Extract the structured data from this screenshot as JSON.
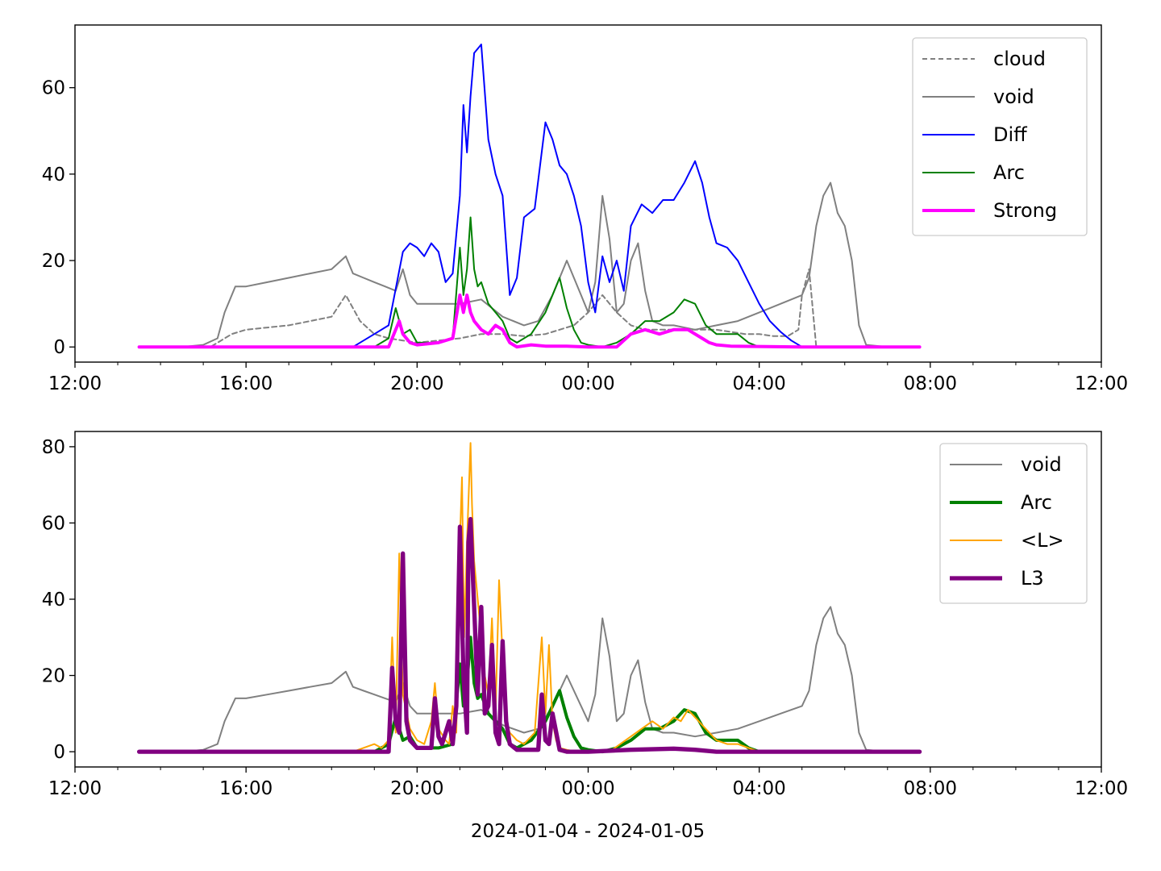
{
  "figure": {
    "xlabel": "2024-01-04 - 2024-01-05"
  },
  "chart_data": [
    {
      "type": "line",
      "title": "",
      "xlabel": "",
      "ylabel": "",
      "xlim": [
        "2024-01-04 12:00",
        "2024-01-05 12:00"
      ],
      "ylim": [
        -3.5,
        74.5
      ],
      "x_ticks": [
        "12:00",
        "16:00",
        "20:00",
        "00:00",
        "04:00",
        "08:00",
        "12:00"
      ],
      "y_ticks": [
        "0",
        "20",
        "40",
        "60"
      ],
      "grid": false,
      "legend_position": "upper right",
      "series": [
        {
          "name": "cloud",
          "color": "#808080",
          "style": "dashed",
          "width": 1.5,
          "x": [
            "13:30",
            "14:30",
            "15:10",
            "15:20",
            "15:40",
            "16:00",
            "16:30",
            "17:00",
            "17:30",
            "18:00",
            "18:20",
            "18:40",
            "19:00",
            "19:20",
            "19:40",
            "20:00",
            "20:30",
            "21:00",
            "21:30",
            "22:00",
            "22:30",
            "23:00",
            "23:20",
            "23:40",
            "00:00",
            "00:20",
            "00:40",
            "01:00",
            "01:20",
            "01:40",
            "02:00",
            "02:20",
            "02:40",
            "03:00",
            "03:20",
            "03:40",
            "04:00",
            "04:20",
            "04:40",
            "04:55",
            "05:00",
            "05:10",
            "05:20",
            "05:30",
            "06:00",
            "06:30",
            "07:00",
            "07:45"
          ],
          "y": [
            0,
            0,
            0,
            1,
            3,
            4,
            4.5,
            5,
            6,
            7,
            12,
            6,
            3,
            2,
            1.5,
            1,
            1.5,
            2,
            3,
            3,
            2.5,
            3,
            4,
            5,
            8,
            12,
            8,
            5,
            4,
            4,
            4,
            4,
            4,
            4,
            3.5,
            3,
            3,
            2.5,
            2.5,
            4,
            12,
            18,
            0,
            0,
            0,
            0,
            0,
            0
          ]
        },
        {
          "name": "void",
          "color": "#808080",
          "style": "solid",
          "width": 1.5,
          "x": [
            "13:30",
            "14:30",
            "15:00",
            "15:20",
            "15:30",
            "15:45",
            "16:00",
            "16:30",
            "17:00",
            "17:30",
            "18:00",
            "18:20",
            "18:30",
            "18:45",
            "19:00",
            "19:15",
            "19:30",
            "19:40",
            "19:50",
            "20:00",
            "20:30",
            "21:00",
            "21:30",
            "22:00",
            "22:30",
            "22:50",
            "23:10",
            "23:30",
            "23:50",
            "00:00",
            "00:10",
            "00:20",
            "00:30",
            "00:40",
            "00:50",
            "01:00",
            "01:10",
            "01:20",
            "01:30",
            "01:45",
            "02:00",
            "02:30",
            "03:00",
            "03:30",
            "04:00",
            "04:30",
            "05:00",
            "05:10",
            "05:20",
            "05:30",
            "05:40",
            "05:50",
            "06:00",
            "06:10",
            "06:20",
            "06:30",
            "07:00",
            "07:45"
          ],
          "y": [
            0,
            0,
            0.5,
            2,
            8,
            14,
            14,
            15,
            16,
            17,
            18,
            21,
            17,
            16,
            15,
            14,
            13,
            18,
            12,
            10,
            10,
            10,
            11,
            7,
            5,
            6,
            12,
            20,
            12,
            8,
            15,
            35,
            25,
            8,
            10,
            20,
            24,
            13,
            6,
            5,
            5,
            4,
            5,
            6,
            8,
            10,
            12,
            16,
            28,
            35,
            38,
            31,
            28,
            20,
            5,
            0.5,
            0,
            0
          ]
        },
        {
          "name": "Diff",
          "color": "#0000ff",
          "style": "solid",
          "width": 1.5,
          "x": [
            "13:30",
            "18:30",
            "19:00",
            "19:20",
            "19:40",
            "19:50",
            "20:00",
            "20:10",
            "20:20",
            "20:30",
            "20:40",
            "20:50",
            "21:00",
            "21:05",
            "21:10",
            "21:15",
            "21:20",
            "21:30",
            "21:40",
            "21:50",
            "22:00",
            "22:10",
            "22:20",
            "22:30",
            "22:45",
            "23:00",
            "23:10",
            "23:20",
            "23:30",
            "23:40",
            "23:50",
            "00:00",
            "00:10",
            "00:20",
            "00:30",
            "00:40",
            "00:50",
            "01:00",
            "01:15",
            "01:30",
            "01:45",
            "02:00",
            "02:15",
            "02:30",
            "02:40",
            "02:50",
            "03:00",
            "03:15",
            "03:30",
            "03:45",
            "04:00",
            "04:15",
            "04:30",
            "04:45",
            "05:00"
          ],
          "y": [
            0,
            0,
            3,
            5,
            22,
            24,
            23,
            21,
            24,
            22,
            15,
            17,
            35,
            56,
            45,
            58,
            68,
            70,
            48,
            40,
            35,
            12,
            16,
            30,
            32,
            52,
            48,
            42,
            40,
            35,
            28,
            15,
            8,
            21,
            15,
            20,
            13,
            28,
            33,
            31,
            34,
            34,
            38,
            43,
            38,
            30,
            24,
            23,
            20,
            15,
            10,
            6,
            3.5,
            1.5,
            0
          ]
        },
        {
          "name": "Arc",
          "color": "#008000",
          "style": "solid",
          "width": 1.5,
          "x": [
            "13:30",
            "19:00",
            "19:20",
            "19:30",
            "19:40",
            "19:50",
            "20:00",
            "20:30",
            "20:50",
            "21:00",
            "21:05",
            "21:10",
            "21:15",
            "21:20",
            "21:25",
            "21:30",
            "21:40",
            "21:50",
            "22:00",
            "22:10",
            "22:20",
            "22:40",
            "23:00",
            "23:10",
            "23:20",
            "23:30",
            "23:40",
            "23:50",
            "00:00",
            "00:20",
            "00:40",
            "01:00",
            "01:20",
            "01:40",
            "02:00",
            "02:15",
            "02:30",
            "02:45",
            "03:00",
            "03:15",
            "03:30",
            "03:45",
            "04:00"
          ],
          "y": [
            0,
            0,
            2,
            9,
            3,
            4,
            1,
            1,
            2,
            23,
            12,
            18,
            30,
            18,
            14,
            15,
            10,
            8,
            6,
            2,
            1,
            3,
            8,
            12,
            16,
            9,
            4,
            1,
            0.5,
            0,
            1,
            3,
            6,
            6,
            8,
            11,
            10,
            5,
            3,
            3,
            3,
            1,
            0
          ]
        },
        {
          "name": "Strong",
          "color": "#ff00ff",
          "style": "solid",
          "width": 3.0,
          "x": [
            "13:30",
            "19:20",
            "19:30",
            "19:35",
            "19:40",
            "19:50",
            "20:00",
            "20:30",
            "20:50",
            "21:00",
            "21:05",
            "21:10",
            "21:15",
            "21:20",
            "21:30",
            "21:40",
            "21:50",
            "22:00",
            "22:10",
            "22:20",
            "22:40",
            "23:00",
            "23:30",
            "00:00",
            "00:40",
            "01:00",
            "01:20",
            "01:40",
            "02:00",
            "02:20",
            "02:30",
            "02:40",
            "02:50",
            "03:00",
            "03:20",
            "05:00",
            "07:45"
          ],
          "y": [
            0,
            0,
            4,
            6,
            3,
            1,
            0.5,
            1,
            2,
            12,
            8,
            12,
            8,
            6,
            4,
            3,
            5,
            4,
            1,
            0,
            0.5,
            0.2,
            0.2,
            0,
            0,
            3,
            4,
            3,
            4,
            4,
            3,
            2,
            1,
            0.5,
            0.2,
            0,
            0
          ]
        }
      ]
    },
    {
      "type": "line",
      "title": "",
      "xlabel": "2024-01-04 - 2024-01-05",
      "ylabel": "",
      "xlim": [
        "2024-01-04 12:00",
        "2024-01-05 12:00"
      ],
      "ylim": [
        -4,
        84
      ],
      "x_ticks": [
        "12:00",
        "16:00",
        "20:00",
        "00:00",
        "04:00",
        "08:00",
        "12:00"
      ],
      "y_ticks": [
        "0",
        "20",
        "40",
        "60",
        "80"
      ],
      "grid": false,
      "legend_position": "upper right",
      "series": [
        {
          "name": "void",
          "color": "#808080",
          "style": "solid",
          "width": 1.5,
          "x": [
            "13:30",
            "14:30",
            "15:00",
            "15:20",
            "15:30",
            "15:45",
            "16:00",
            "16:30",
            "17:00",
            "17:30",
            "18:00",
            "18:20",
            "18:30",
            "18:45",
            "19:00",
            "19:15",
            "19:30",
            "19:40",
            "19:50",
            "20:00",
            "20:30",
            "21:00",
            "21:30",
            "22:00",
            "22:30",
            "22:50",
            "23:10",
            "23:30",
            "23:50",
            "00:00",
            "00:10",
            "00:20",
            "00:30",
            "00:40",
            "00:50",
            "01:00",
            "01:10",
            "01:20",
            "01:30",
            "01:45",
            "02:00",
            "02:30",
            "03:00",
            "03:30",
            "04:00",
            "04:30",
            "05:00",
            "05:10",
            "05:20",
            "05:30",
            "05:40",
            "05:50",
            "06:00",
            "06:10",
            "06:20",
            "06:30",
            "07:00",
            "07:45"
          ],
          "y": [
            0,
            0,
            0.5,
            2,
            8,
            14,
            14,
            15,
            16,
            17,
            18,
            21,
            17,
            16,
            15,
            14,
            13,
            18,
            12,
            10,
            10,
            10,
            11,
            7,
            5,
            6,
            12,
            20,
            12,
            8,
            15,
            35,
            25,
            8,
            10,
            20,
            24,
            13,
            6,
            5,
            5,
            4,
            5,
            6,
            8,
            10,
            12,
            16,
            28,
            35,
            38,
            31,
            28,
            20,
            5,
            0.5,
            0,
            0
          ]
        },
        {
          "name": "Arc",
          "color": "#008000",
          "style": "solid",
          "width": 3.0,
          "x": [
            "13:30",
            "19:00",
            "19:20",
            "19:30",
            "19:40",
            "19:50",
            "20:00",
            "20:30",
            "20:50",
            "21:00",
            "21:05",
            "21:10",
            "21:15",
            "21:20",
            "21:25",
            "21:30",
            "21:40",
            "21:50",
            "22:00",
            "22:10",
            "22:20",
            "22:40",
            "23:00",
            "23:10",
            "23:20",
            "23:30",
            "23:40",
            "23:50",
            "00:00",
            "00:20",
            "00:40",
            "01:00",
            "01:20",
            "01:40",
            "02:00",
            "02:15",
            "02:30",
            "02:45",
            "03:00",
            "03:15",
            "03:30",
            "03:45",
            "04:00"
          ],
          "y": [
            0,
            0,
            2,
            9,
            3,
            4,
            1,
            1,
            2,
            23,
            12,
            18,
            30,
            18,
            14,
            15,
            10,
            8,
            6,
            2,
            1,
            3,
            8,
            12,
            16,
            9,
            4,
            1,
            0.5,
            0,
            1,
            3,
            6,
            6,
            8,
            11,
            10,
            5,
            3,
            3,
            3,
            1,
            0
          ]
        },
        {
          "name": "<L>",
          "color": "#ffa500",
          "style": "solid",
          "width": 1.5,
          "x": [
            "13:30",
            "18:30",
            "19:00",
            "19:10",
            "19:20",
            "19:25",
            "19:30",
            "19:35",
            "19:40",
            "19:50",
            "20:00",
            "20:10",
            "20:20",
            "20:25",
            "20:30",
            "20:40",
            "20:45",
            "20:50",
            "20:55",
            "21:00",
            "21:03",
            "21:06",
            "21:10",
            "21:15",
            "21:17",
            "21:20",
            "21:25",
            "21:30",
            "21:35",
            "21:40",
            "21:45",
            "21:50",
            "21:55",
            "22:00",
            "22:05",
            "22:10",
            "22:20",
            "22:30",
            "22:45",
            "22:55",
            "23:00",
            "23:05",
            "23:10",
            "23:15",
            "23:20",
            "23:30",
            "23:45",
            "00:00",
            "00:30",
            "00:45",
            "01:00",
            "01:15",
            "01:30",
            "01:45",
            "02:00",
            "02:10",
            "02:20",
            "02:30",
            "02:40",
            "02:50",
            "03:00",
            "03:15",
            "03:30",
            "03:45",
            "04:00"
          ],
          "y": [
            0,
            0,
            2,
            1,
            3,
            30,
            5,
            52,
            15,
            6,
            3,
            2,
            8,
            18,
            6,
            3,
            2,
            12,
            5,
            55,
            72,
            30,
            55,
            81,
            65,
            50,
            40,
            30,
            20,
            15,
            35,
            10,
            45,
            25,
            8,
            5,
            3,
            2,
            5,
            30,
            10,
            28,
            8,
            3,
            1,
            0.5,
            0,
            0,
            0,
            2,
            4,
            6,
            8,
            6,
            9,
            8,
            11,
            9,
            7,
            5,
            3,
            2,
            2,
            1,
            0
          ]
        },
        {
          "name": "L3",
          "color": "#800080",
          "style": "solid",
          "width": 4.0,
          "x": [
            "13:30",
            "19:20",
            "19:25",
            "19:30",
            "19:35",
            "19:40",
            "19:45",
            "19:50",
            "20:00",
            "20:20",
            "20:25",
            "20:30",
            "20:35",
            "20:45",
            "20:50",
            "20:55",
            "21:00",
            "21:05",
            "21:10",
            "21:12",
            "21:15",
            "21:20",
            "21:25",
            "21:30",
            "21:35",
            "21:40",
            "21:45",
            "21:50",
            "21:55",
            "22:00",
            "22:05",
            "22:10",
            "22:20",
            "22:50",
            "22:55",
            "23:00",
            "23:05",
            "23:10",
            "23:20",
            "23:30",
            "00:00",
            "01:00",
            "02:00",
            "02:30",
            "03:00",
            "07:45"
          ],
          "y": [
            0,
            0,
            22,
            8,
            5,
            52,
            8,
            3,
            1,
            1,
            14,
            4,
            2,
            8,
            2,
            12,
            59,
            20,
            5,
            55,
            61,
            38,
            15,
            38,
            10,
            12,
            28,
            5,
            2,
            29,
            8,
            2,
            0.5,
            0.5,
            15,
            3,
            2,
            10,
            0.5,
            0,
            0,
            0.5,
            0.8,
            0.5,
            0,
            0
          ]
        }
      ]
    }
  ],
  "legends": [
    {
      "items": [
        "cloud",
        "void",
        "Diff",
        "Arc",
        "Strong"
      ]
    },
    {
      "items": [
        "void",
        "Arc",
        "<L>",
        "L3"
      ]
    }
  ]
}
